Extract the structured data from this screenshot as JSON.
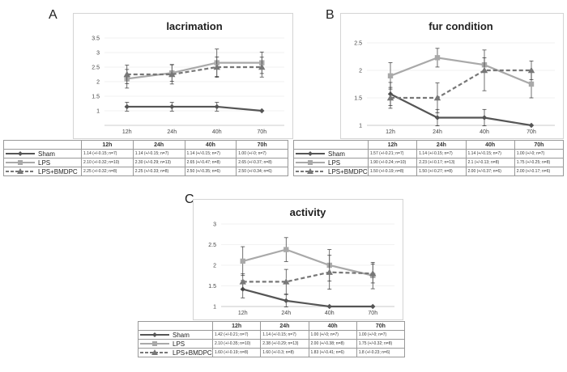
{
  "chart_data": [
    {
      "type": "line",
      "panel": "A",
      "title": "lacrimation",
      "categories": [
        "12h",
        "24h",
        "40h",
        "70h"
      ],
      "ylim": [
        0.5,
        3.5
      ],
      "yticks": [
        "1",
        "1.5",
        "2",
        "2.5",
        "3",
        "3.5"
      ],
      "legend": "table-below",
      "series": [
        {
          "name": "Sham",
          "color": "#555555",
          "style": "solid-diamond",
          "values": [
            1.14,
            1.14,
            1.14,
            1.0
          ],
          "errors": [
            0.15,
            0.15,
            0.15,
            0
          ],
          "cells": [
            "1.14 (+/-0.15; n=7)",
            "1.14 (+/-0.15; n=7)",
            "1.14 (+/-0.15; n=7)",
            "1.00 (+/-0; n=7)"
          ]
        },
        {
          "name": "LPS",
          "color": "#a9a9a9",
          "style": "solid-square",
          "values": [
            2.1,
            2.3,
            2.65,
            2.65
          ],
          "errors": [
            0.32,
            0.29,
            0.47,
            0.37
          ],
          "cells": [
            "2.10 (+/-0.32; n=10)",
            "2.30 (+/-0.29; n=13)",
            "2.65 (+/-0.47; n=8)",
            "2.65 (+/-0.37; n=8)"
          ]
        },
        {
          "name": "LPS+BMDPC",
          "color": "#777777",
          "style": "dashed-triangle",
          "values": [
            2.25,
            2.25,
            2.5,
            2.5
          ],
          "errors": [
            0.32,
            0.33,
            0.35,
            0.34
          ],
          "cells": [
            "2.25 (+/-0.32; n=8)",
            "2.25 (+/-0.33; n=8)",
            "2.50 (+/-0.35; n=6)",
            "2.50 (+/-0.34; n=6)"
          ]
        }
      ]
    },
    {
      "type": "line",
      "panel": "B",
      "title": "fur condition",
      "categories": [
        "12h",
        "24h",
        "40h",
        "70h"
      ],
      "ylim": [
        1,
        2.5
      ],
      "yticks": [
        "1",
        "1.5",
        "2",
        "2.5"
      ],
      "legend": "table-below",
      "series": [
        {
          "name": "Sham",
          "color": "#555555",
          "style": "solid-diamond",
          "values": [
            1.57,
            1.14,
            1.14,
            1.0
          ],
          "errors": [
            0.21,
            0.15,
            0.15,
            0
          ],
          "cells": [
            "1.57 (+/-0.21; n=7)",
            "1.14 (+/-0.15; n=7)",
            "1.14 (+/-0.15; n=7)",
            "1.00 (+/-0; n=7)"
          ]
        },
        {
          "name": "LPS",
          "color": "#a9a9a9",
          "style": "solid-square",
          "values": [
            1.9,
            2.23,
            2.1,
            1.75
          ],
          "errors": [
            0.24,
            0.17,
            0.13,
            0.25
          ],
          "cells": [
            "1.90 (+/-0.24; n=10)",
            "2.23 (+/-0.17; n=13)",
            "2.1 (+/-0.13; n=8)",
            "1.75 (+/-0.25; n=8)"
          ]
        },
        {
          "name": "LPS+BMDPC",
          "color": "#777777",
          "style": "dashed-triangle",
          "values": [
            1.5,
            1.5,
            2.0,
            2.0
          ],
          "errors": [
            0.19,
            0.27,
            0.37,
            0.17
          ],
          "cells": [
            "1.50 (+/-0.19; n=8)",
            "1.50 (+/-0.27; n=8)",
            "2.00 (+/-0.37; n=6)",
            "2.00 (+/-0.17; n=6)"
          ]
        }
      ]
    },
    {
      "type": "line",
      "panel": "C",
      "title": "activity",
      "categories": [
        "12h",
        "24h",
        "40h",
        "70h"
      ],
      "ylim": [
        1,
        3
      ],
      "yticks": [
        "1",
        "1.5",
        "2",
        "2.5",
        "3"
      ],
      "legend": "table-below",
      "series": [
        {
          "name": "Sham",
          "color": "#555555",
          "style": "solid-diamond",
          "values": [
            1.42,
            1.14,
            1.0,
            1.0
          ],
          "errors": [
            0.21,
            0.15,
            0,
            0
          ],
          "cells": [
            "1.42 (+/-0.21; n=7)",
            "1.14 (+/-0.15; n=7)",
            "1.00 (+/-0; n=7)",
            "1.00 (+/-0; n=7)"
          ]
        },
        {
          "name": "LPS",
          "color": "#a9a9a9",
          "style": "solid-square",
          "values": [
            2.1,
            2.38,
            2.0,
            1.75
          ],
          "errors": [
            0.35,
            0.29,
            0.38,
            0.32
          ],
          "cells": [
            "2.10 (+/-0.35; n=10)",
            "2.38 (+/-0.29; n=13)",
            "2.00 (+/-0.38; n=8)",
            "1.75 (+/-0.32; n=8)"
          ]
        },
        {
          "name": "LPS+BMDPC",
          "color": "#777777",
          "style": "dashed-triangle",
          "values": [
            1.6,
            1.6,
            1.83,
            1.8
          ],
          "errors": [
            0.19,
            0.3,
            0.41,
            0.23
          ],
          "cells": [
            "1.60 (+/-0.19; n=8)",
            "1.60 (+/-0.3; n=8)",
            "1.83 (+/-0.41; n=6)",
            "1.8 (+/-0.23; n=6)"
          ]
        }
      ]
    }
  ]
}
